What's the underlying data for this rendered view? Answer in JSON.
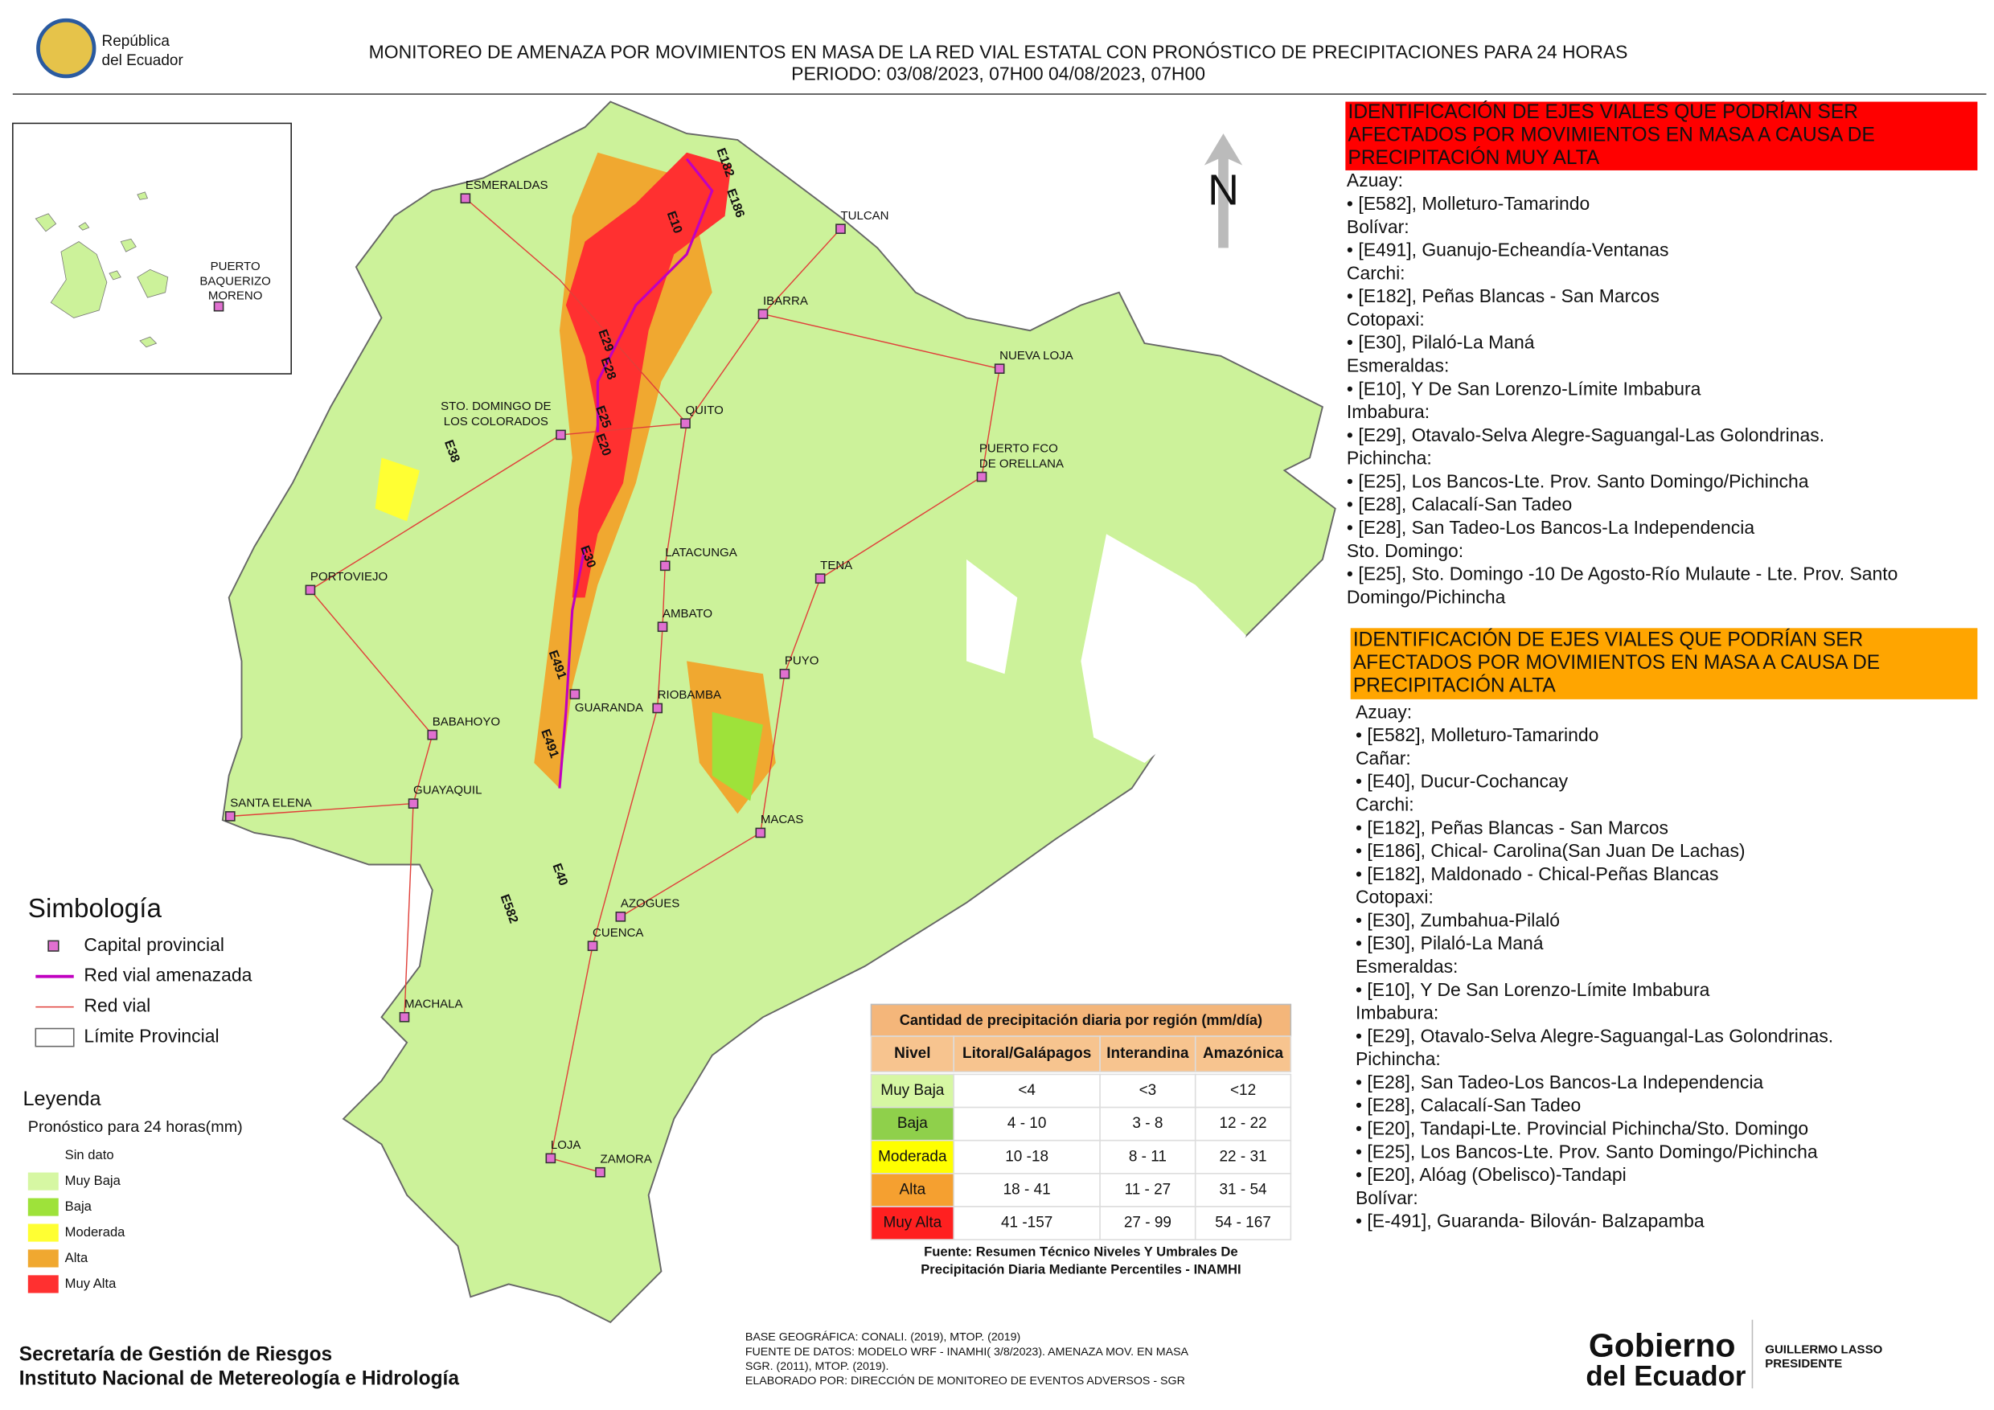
{
  "header": {
    "logo_text": [
      "República",
      "del Ecuador"
    ],
    "title": "MONITOREO DE AMENAZA POR MOVIMIENTOS EN MASA DE LA RED VIAL  ESTATAL  CON PRONÓSTICO  DE  PRECIPITACIONES PARA 24 HORAS",
    "period": "PERIODO: 03/08/2023, 07H00 04/08/2023, 07H00"
  },
  "map": {
    "north": "N",
    "inset_label": [
      "PUERTO",
      "BAQUERIZO",
      "MORENO"
    ],
    "cities": [
      "ESMERALDAS",
      "TULCAN",
      "IBARRA",
      "NUEVA LOJA",
      "QUITO",
      "LATACUNGA",
      "TENA",
      "PORTOVIEJO",
      "AMBATO",
      "PUYO",
      "GUARANDA",
      "RIOBAMBA",
      "BABAHOYO",
      "SANTA ELENA",
      "GUAYAQUIL",
      "MACAS",
      "AZOGUES",
      "CUENCA",
      "MACHALA",
      "LOJA",
      "ZAMORA"
    ],
    "two_line_cities": [
      [
        "STO. DOMINGO DE",
        "LOS COLORADOS"
      ],
      [
        "PUERTO FCO",
        "DE ORELLANA"
      ]
    ],
    "roads": [
      "E182",
      "E186",
      "E10",
      "E29",
      "E28",
      "E25",
      "E20",
      "E38",
      "E30",
      "E491",
      "E491",
      "E40",
      "E582"
    ]
  },
  "red_panel": {
    "heading": [
      "IDENTIFICACIÓN DE EJES VIALES QUE PODRÍAN SER",
      "AFECTADOS POR MOVIMIENTOS EN MASA A CAUSA DE",
      "PRECIPITACIÓN MUY ALTA"
    ],
    "items": [
      "Azuay:",
      "• [E582], Molleturo-Tamarindo",
      "Bolívar:",
      "• [E491], Guanujo-Echeandía-Ventanas",
      "Carchi:",
      "• [E182], Peñas Blancas - San Marcos",
      "Cotopaxi:",
      "• [E30], Pilaló-La Maná",
      "Esmeraldas:",
      "• [E10], Y De San Lorenzo-Límite Imbabura",
      "Imbabura:",
      "• [E29], Otavalo-Selva Alegre-Saguangal-Las Golondrinas.",
      "Pichincha:",
      "• [E25], Los Bancos-Lte. Prov. Santo Domingo/Pichincha",
      "• [E28], Calacalí-San Tadeo",
      "• [E28], San Tadeo-Los Bancos-La Independencia",
      "Sto. Domingo:",
      "• [E25], Sto. Domingo -10 De Agosto-Río Mulaute - Lte. Prov. Santo",
      "Domingo/Pichincha"
    ]
  },
  "orange_panel": {
    "heading": [
      "IDENTIFICACIÓN DE EJES VIALES QUE PODRÍAN SER",
      "AFECTADOS POR MOVIMIENTOS EN MASA A CAUSA DE",
      "PRECIPITACIÓN  ALTA"
    ],
    "items": [
      "Azuay:",
      "• [E582], Molleturo-Tamarindo",
      "Cañar:",
      "• [E40], Ducur-Cochancay",
      "Carchi:",
      "• [E182], Peñas Blancas - San Marcos",
      "• [E186], Chical- Carolina(San Juan De Lachas)",
      "• [E182], Maldonado - Chical-Peñas Blancas",
      "Cotopaxi:",
      "• [E30], Zumbahua-Pilaló",
      "• [E30], Pilaló-La Maná",
      "Esmeraldas:",
      "• [E10], Y De San Lorenzo-Límite Imbabura",
      "Imbabura:",
      "• [E29], Otavalo-Selva Alegre-Saguangal-Las Golondrinas.",
      "Pichincha:",
      "• [E28], San Tadeo-Los Bancos-La Independencia",
      "• [E28], Calacalí-San Tadeo",
      "• [E20], Tandapi-Lte. Provincial Pichincha/Sto. Domingo",
      "• [E25], Los Bancos-Lte. Prov. Santo Domingo/Pichincha",
      "• [E20], Alóag (Obelisco)-Tandapi",
      "Bolívar:",
      "• [E-491], Guaranda- Bilován- Balzapamba"
    ]
  },
  "simbologia": {
    "title": "Simbología",
    "items": [
      "Capital provincial",
      "Red vial amenazada",
      "Red vial",
      "Límite Provincial"
    ]
  },
  "leyenda": {
    "title": "Leyenda",
    "subtitle": "Pronóstico para 24 horas(mm)",
    "classes": [
      {
        "label": "Sin dato",
        "color": "#ffffff"
      },
      {
        "label": "Muy Baja",
        "color": "#d6f7a3"
      },
      {
        "label": "Baja",
        "color": "#9ee23a"
      },
      {
        "label": "Moderada",
        "color": "#ffff33"
      },
      {
        "label": "Alta",
        "color": "#f0a830"
      },
      {
        "label": "Muy Alta",
        "color": "#ff3030"
      }
    ]
  },
  "table": {
    "title": "Cantidad de precipitación diaria por región (mm/día)",
    "headers": [
      "Nivel",
      "Litoral/Galápagos",
      "Interandina",
      "Amazónica"
    ],
    "rows": [
      [
        "Muy Baja",
        "<4",
        "<3",
        "<12"
      ],
      [
        "Baja",
        "4 - 10",
        "3 - 8",
        "12 - 22"
      ],
      [
        "Moderada",
        "10 -18",
        "8 - 11",
        "22 - 31"
      ],
      [
        "Alta",
        "18 - 41",
        "11 - 27",
        "31 - 54"
      ],
      [
        "Muy Alta",
        "41 -157",
        "27 - 99",
        "54 - 167"
      ]
    ],
    "row_colors": [
      "#d6f7a3",
      "#8fd04b",
      "#ffff00",
      "#f5a030",
      "#ff2020"
    ],
    "source": [
      "Fuente: Resumen Técnico Niveles Y Umbrales De",
      "Precipitación Diaria Mediante Percentiles - INAMHI"
    ]
  },
  "footer": {
    "org": [
      "Secretaría de Gestión de Riesgos",
      "Instituto Nacional de Metereología e Hidrología"
    ],
    "credits": [
      "BASE GEOGRÁFICA: CONALI. (2019), MTOP. (2019)",
      "FUENTE DE DATOS: MODELO WRF - INAMHI( 3/8/2023).  AMENAZA MOV. EN MASA",
      "SGR. (2011), MTOP. (2019).",
      "ELABORADO POR: DIRECCIÓN DE MONITOREO DE EVENTOS ADVERSOS - SGR"
    ],
    "logo": [
      "Gobierno",
      "del Ecuador"
    ],
    "president": [
      "GUILLERMO LASSO",
      "PRESIDENTE"
    ]
  }
}
